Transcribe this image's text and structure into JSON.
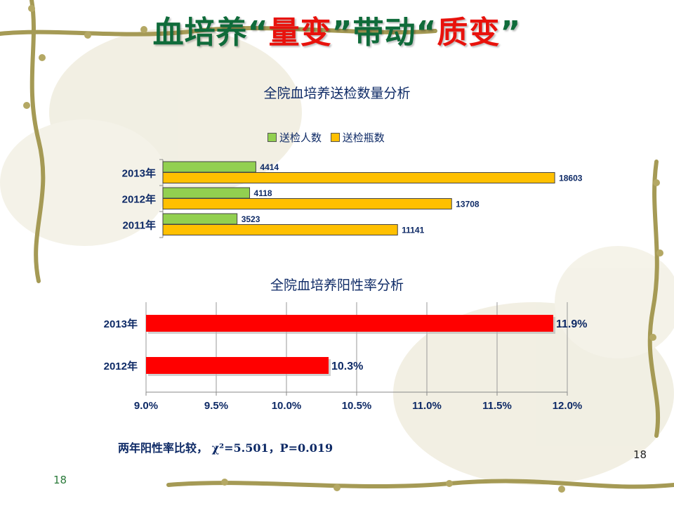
{
  "slide": {
    "title_part1": "血培养“",
    "title_hl1": "量变",
    "title_part2": "”带动“",
    "title_hl2": "质变",
    "title_part3": "”",
    "note": "两年阳性率比较， χ²=5.501，P=0.019",
    "page_number_right": "18",
    "page_number_left": "18"
  },
  "chart_data": [
    {
      "type": "bar",
      "orientation": "horizontal",
      "title": "全院血培养送检数量分析",
      "categories": [
        "2013年",
        "2012年",
        "2011年"
      ],
      "series": [
        {
          "name": "送检人数",
          "values": [
            4414,
            4118,
            3523
          ],
          "color": "#92d050"
        },
        {
          "name": "送检瓶数",
          "values": [
            18603,
            13708,
            11141
          ],
          "color": "#ffc000"
        }
      ],
      "xlim": [
        0,
        20000
      ],
      "legend": "top",
      "grid": false
    },
    {
      "type": "bar",
      "orientation": "horizontal",
      "title": "全院血培养阳性率分析",
      "categories": [
        "2013年",
        "2012年"
      ],
      "values": [
        11.9,
        10.3
      ],
      "value_labels": [
        "11.9%",
        "10.3%"
      ],
      "color": "#ff0000",
      "xlim": [
        9.0,
        12.0
      ],
      "xticks": [
        "9.0%",
        "9.5%",
        "10.0%",
        "10.5%",
        "11.0%",
        "11.5%",
        "12.0%"
      ],
      "grid": true
    }
  ]
}
